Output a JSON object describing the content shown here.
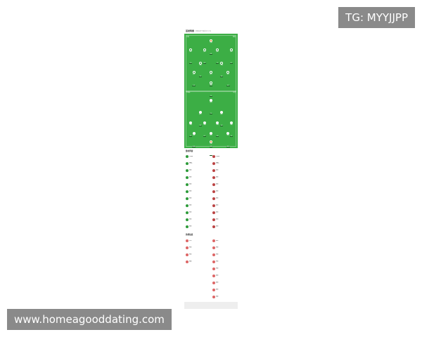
{
  "watermarks": {
    "top": "TG: MYYJJPP",
    "bottom": "www.homeagooddating.com"
  },
  "lineup": {
    "title": "首发阵容",
    "subtitle": "数据来源于赛前官方公布",
    "home_label": "主队",
    "away_label": "客队",
    "info_left": "主教练",
    "info_right": "阵型",
    "colors": {
      "pitch": "#3cae45",
      "home_kit": "#2e9b3a",
      "away_kit": "#f2f2f2",
      "gk": "#e07a1e"
    }
  },
  "home_players": [
    {
      "name": "门将",
      "rating": "6.8",
      "row": 0,
      "pos": 0.5,
      "gk": true
    },
    {
      "name": "后卫",
      "rating": "7.0",
      "row": 1,
      "pos": 0.12
    },
    {
      "name": "后卫",
      "rating": "6.9",
      "row": 1,
      "pos": 0.38
    },
    {
      "name": "后卫",
      "rating": "7.1",
      "row": 1,
      "pos": 0.62
    },
    {
      "name": "后卫",
      "rating": "6.7",
      "row": 1,
      "pos": 0.88
    },
    {
      "name": "中场",
      "rating": "7.2",
      "row": 2,
      "pos": 0.3
    },
    {
      "name": "中场",
      "rating": "6.6",
      "row": 2,
      "pos": 0.7
    },
    {
      "name": "前卫",
      "rating": "6.9",
      "row": 3,
      "pos": 0.18
    },
    {
      "name": "前卫",
      "rating": "7.0",
      "row": 3,
      "pos": 0.5
    },
    {
      "name": "前卫",
      "rating": "6.8",
      "row": 3,
      "pos": 0.82
    },
    {
      "name": "前锋",
      "rating": "7.3",
      "row": 4,
      "pos": 0.5
    }
  ],
  "away_players": [
    {
      "name": "前锋",
      "rating": "7.0",
      "row": 0,
      "pos": 0.5
    },
    {
      "name": "前卫",
      "rating": "6.9",
      "row": 1,
      "pos": 0.3
    },
    {
      "name": "前卫",
      "rating": "6.8",
      "row": 1,
      "pos": 0.7
    },
    {
      "name": "中场",
      "rating": "7.1",
      "row": 2,
      "pos": 0.12
    },
    {
      "name": "中场",
      "rating": "6.7",
      "row": 2,
      "pos": 0.38
    },
    {
      "name": "中场",
      "rating": "6.9",
      "row": 2,
      "pos": 0.62
    },
    {
      "name": "中场",
      "rating": "7.0",
      "row": 2,
      "pos": 0.88
    },
    {
      "name": "后卫",
      "rating": "6.6",
      "row": 3,
      "pos": 0.18
    },
    {
      "name": "后卫",
      "rating": "6.8",
      "row": 3,
      "pos": 0.5
    },
    {
      "name": "后卫",
      "rating": "6.9",
      "row": 3,
      "pos": 0.82
    },
    {
      "name": "门将",
      "rating": "7.2",
      "row": 4,
      "pos": 0.5,
      "gk": true
    }
  ],
  "subs": {
    "title": "替补阵容",
    "home": [
      {
        "name": "主教练",
        "sub": ""
      },
      {
        "name": "教练",
        "sub": "主教练"
      },
      {
        "name": "球员",
        "sub": "替补"
      },
      {
        "name": "球员",
        "sub": "替补"
      },
      {
        "name": "球员",
        "sub": "替补"
      },
      {
        "name": "球员",
        "sub": "替补"
      },
      {
        "name": "球员",
        "sub": "替补"
      },
      {
        "name": "球员",
        "sub": "替补"
      },
      {
        "name": "球员",
        "sub": "替补"
      },
      {
        "name": "球员",
        "sub": "替补"
      },
      {
        "name": "球员",
        "sub": "替补"
      }
    ],
    "away": [
      {
        "name": "主教练",
        "sub": ""
      },
      {
        "name": "教练",
        "sub": "主教练"
      },
      {
        "name": "球员",
        "sub": "替补"
      },
      {
        "name": "球员",
        "sub": "替补"
      },
      {
        "name": "球员",
        "sub": "替补"
      },
      {
        "name": "球员",
        "sub": "替补"
      },
      {
        "name": "球员",
        "sub": "替补"
      },
      {
        "name": "球员",
        "sub": "替补"
      },
      {
        "name": "球员",
        "sub": "替补"
      },
      {
        "name": "球员",
        "sub": "替补"
      },
      {
        "name": "球员",
        "sub": "替补"
      }
    ]
  },
  "injuries": {
    "title": "伤停信息",
    "home": [
      {
        "name": "主队",
        "sub": ""
      },
      {
        "name": "球员",
        "sub": "伤病"
      },
      {
        "name": "球员",
        "sub": "伤病"
      },
      {
        "name": "球员",
        "sub": "停赛"
      }
    ],
    "away": [
      {
        "name": "客队",
        "sub": ""
      },
      {
        "name": "球员",
        "sub": "伤病"
      },
      {
        "name": "球员",
        "sub": "伤病"
      },
      {
        "name": "球员",
        "sub": "伤病"
      },
      {
        "name": "球员",
        "sub": "伤病"
      },
      {
        "name": "球员",
        "sub": "疑问"
      },
      {
        "name": "球员",
        "sub": "疑问"
      },
      {
        "name": "球员",
        "sub": "疑问"
      },
      {
        "name": "球员",
        "sub": "停赛"
      }
    ]
  }
}
